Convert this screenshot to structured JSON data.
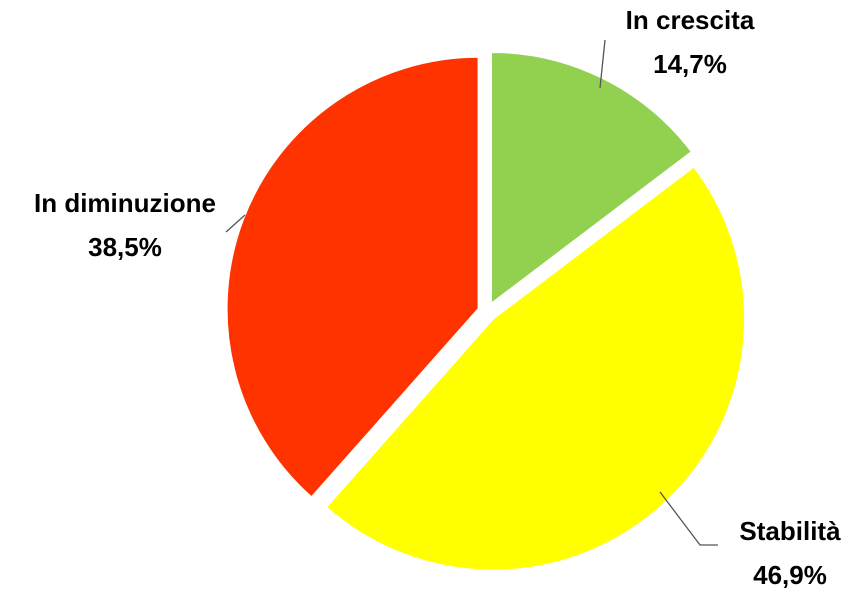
{
  "chart_data": {
    "type": "pie",
    "categories": [
      "In crescita",
      "Stabilità",
      "In diminuzione"
    ],
    "values": [
      14.7,
      46.9,
      38.5
    ],
    "value_labels": [
      "14,7%",
      "46,9%",
      "38,5%"
    ],
    "colors": [
      "#92d050",
      "#ffff00",
      "#ff3300"
    ]
  }
}
